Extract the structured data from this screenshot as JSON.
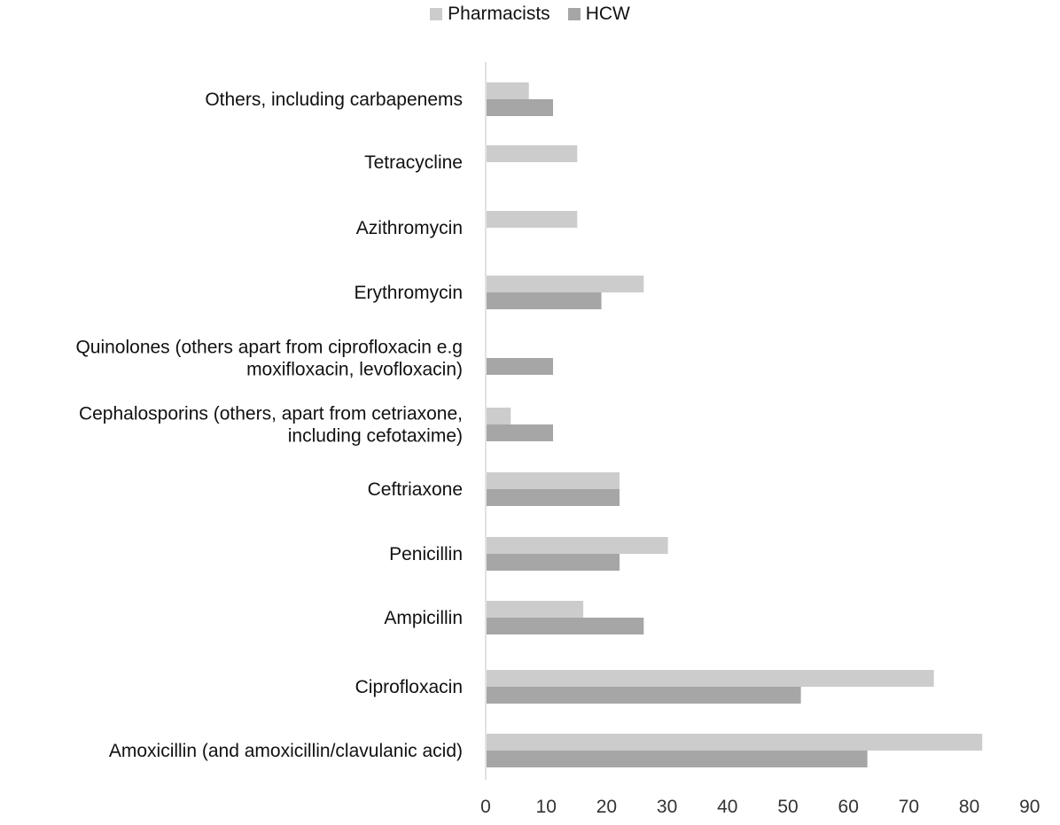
{
  "chart_data": {
    "type": "bar",
    "orientation": "horizontal",
    "categories": [
      "Amoxicillin (and amoxicillin/clavulanic acid)",
      "Ciprofloxacin",
      "Ampicillin",
      "Penicillin",
      "Ceftriaxone",
      "Cephalosporins (others, apart from cetriaxone, including cefotaxime)",
      "Quinolones (others apart from ciprofloxacin e.g moxifloxacin, levofloxacin)",
      "Erythromycin",
      "Azithromycin",
      "Tetracycline",
      "Others, including carbapenems"
    ],
    "category_label_lines": [
      [
        "Amoxicillin (and amoxicillin/clavulanic acid)"
      ],
      [
        "Ciprofloxacin"
      ],
      [
        "Ampicillin"
      ],
      [
        "Penicillin"
      ],
      [
        "Ceftriaxone"
      ],
      [
        "Cephalosporins (others, apart from cetriaxone,",
        "including cefotaxime)"
      ],
      [
        "Quinolones (others apart from ciprofloxacin e.g",
        "moxifloxacin, levofloxacin)"
      ],
      [
        "Erythromycin"
      ],
      [
        "Azithromycin"
      ],
      [
        "Tetracycline"
      ],
      [
        "Others, including carbapenems"
      ]
    ],
    "series": [
      {
        "name": "Pharmacists",
        "color": "#cccccc",
        "values": [
          82,
          74,
          16,
          30,
          22,
          4,
          0,
          26,
          15,
          15,
          7
        ]
      },
      {
        "name": "HCW",
        "color": "#a6a6a6",
        "values": [
          63,
          52,
          26,
          22,
          22,
          11,
          11,
          19,
          0,
          0,
          11
        ]
      }
    ],
    "xlim": [
      0,
      90
    ],
    "ticks": [
      0,
      10,
      20,
      30,
      40,
      50,
      60,
      70,
      80,
      90
    ],
    "title": "",
    "xlabel": "",
    "ylabel": "",
    "grid": false,
    "legend_position": "top-center",
    "axis_color": "#d9d9d9"
  }
}
